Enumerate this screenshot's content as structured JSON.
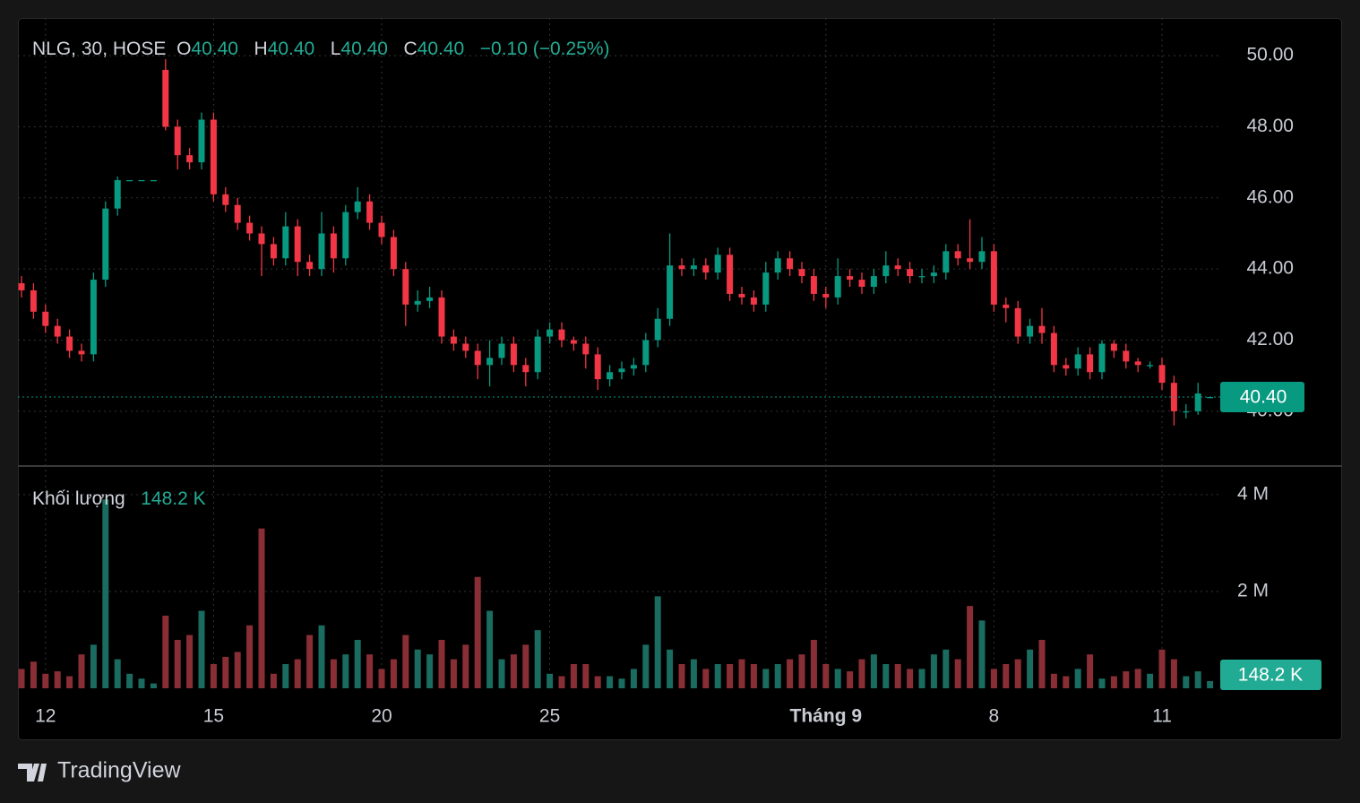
{
  "brand": "TradingView",
  "chart_data": {
    "type": "candlestick",
    "legend": {
      "symbol": "NLG, 30, HOSE",
      "items": [
        {
          "key": "O",
          "value": "40.40"
        },
        {
          "key": "H",
          "value": "40.40"
        },
        {
          "key": "L",
          "value": "40.40"
        },
        {
          "key": "C",
          "value": "40.40"
        }
      ],
      "change": "−0.10 (−0.25%)"
    },
    "volume_legend": {
      "name": "Khối lượng",
      "value": "148.2 K"
    },
    "categories": [
      null,
      null,
      "12",
      null,
      null,
      null,
      null,
      null,
      null,
      null,
      null,
      null,
      null,
      null,
      null,
      null,
      "15",
      null,
      null,
      null,
      null,
      null,
      null,
      null,
      null,
      null,
      null,
      null,
      null,
      null,
      "20",
      null,
      null,
      null,
      null,
      null,
      null,
      null,
      null,
      null,
      null,
      null,
      null,
      null,
      "25",
      null,
      null,
      null,
      null,
      null,
      null,
      null,
      null,
      null,
      null,
      null,
      null,
      null,
      null,
      null,
      null,
      null,
      null,
      null,
      null,
      null,
      null,
      "Tháng 9",
      null,
      null,
      null,
      null,
      null,
      null,
      null,
      null,
      null,
      null,
      null,
      null,
      null,
      "8",
      null,
      null,
      null,
      null,
      null,
      null,
      null,
      null,
      null,
      null,
      null,
      null,
      null,
      "11",
      null,
      null,
      null,
      null
    ],
    "open": [
      43.6,
      43.4,
      42.8,
      42.4,
      42.1,
      41.7,
      41.6,
      43.7,
      45.7,
      46.5,
      46.5,
      46.5,
      49.6,
      48.0,
      47.2,
      47.0,
      48.2,
      46.1,
      45.8,
      45.3,
      45.0,
      44.7,
      44.3,
      45.2,
      44.2,
      44.0,
      45.0,
      44.3,
      45.6,
      45.9,
      45.3,
      44.9,
      44.0,
      43.0,
      43.1,
      43.2,
      42.1,
      41.9,
      41.7,
      41.3,
      41.5,
      41.9,
      41.3,
      41.1,
      42.1,
      42.3,
      42.0,
      41.9,
      41.6,
      40.9,
      41.1,
      41.2,
      41.3,
      42.0,
      42.6,
      44.1,
      44.0,
      44.1,
      43.9,
      44.4,
      43.3,
      43.2,
      43.0,
      43.9,
      44.3,
      44.0,
      43.8,
      43.3,
      43.2,
      43.8,
      43.7,
      43.5,
      43.8,
      44.1,
      44.0,
      43.8,
      43.8,
      43.9,
      44.5,
      44.3,
      44.2,
      44.5,
      43.0,
      42.9,
      42.1,
      42.4,
      42.2,
      41.3,
      41.2,
      41.6,
      41.1,
      41.9,
      41.7,
      41.4,
      41.3,
      41.3,
      40.8,
      40.0,
      40.0,
      40.4
    ],
    "high": [
      43.8,
      43.6,
      43.0,
      42.6,
      42.3,
      41.9,
      43.9,
      45.9,
      46.6,
      46.5,
      46.5,
      46.5,
      49.9,
      48.2,
      47.4,
      48.4,
      48.4,
      46.3,
      46.0,
      45.5,
      45.2,
      44.9,
      45.6,
      45.4,
      44.4,
      45.6,
      45.2,
      45.8,
      46.3,
      46.1,
      45.5,
      45.1,
      44.2,
      43.4,
      43.5,
      43.4,
      42.3,
      42.1,
      41.9,
      42.0,
      42.1,
      42.1,
      41.5,
      42.3,
      42.5,
      42.5,
      42.1,
      42.1,
      41.8,
      41.3,
      41.4,
      41.5,
      42.2,
      42.9,
      45.0,
      44.3,
      44.3,
      44.3,
      44.6,
      44.6,
      43.5,
      43.4,
      44.2,
      44.5,
      44.5,
      44.2,
      44.0,
      43.5,
      44.3,
      44.0,
      43.9,
      44.0,
      44.5,
      44.3,
      44.2,
      44.0,
      44.1,
      44.7,
      44.7,
      45.4,
      44.9,
      44.7,
      43.2,
      43.1,
      42.6,
      42.9,
      42.4,
      41.5,
      41.8,
      41.8,
      42.0,
      42.0,
      41.9,
      41.5,
      41.4,
      41.5,
      41.0,
      40.2,
      40.8,
      40.4
    ],
    "low": [
      43.2,
      42.6,
      42.2,
      41.9,
      41.5,
      41.4,
      41.4,
      43.5,
      45.5,
      46.5,
      46.5,
      46.5,
      47.9,
      46.8,
      46.8,
      46.8,
      45.9,
      45.6,
      45.1,
      44.8,
      43.8,
      44.1,
      44.1,
      43.8,
      43.8,
      43.8,
      43.9,
      44.1,
      45.4,
      45.1,
      44.7,
      43.8,
      42.4,
      42.8,
      42.9,
      41.9,
      41.7,
      41.5,
      40.9,
      40.7,
      41.3,
      41.1,
      40.7,
      40.9,
      41.9,
      41.8,
      41.7,
      41.2,
      40.6,
      40.7,
      40.9,
      41.0,
      41.1,
      41.8,
      42.4,
      43.8,
      43.8,
      43.7,
      43.7,
      43.1,
      43.0,
      42.8,
      42.8,
      43.7,
      43.8,
      43.6,
      43.1,
      42.9,
      43.0,
      43.5,
      43.3,
      43.3,
      43.6,
      43.8,
      43.6,
      43.6,
      43.6,
      43.7,
      44.1,
      44.0,
      44.0,
      42.8,
      42.5,
      41.9,
      41.9,
      41.9,
      41.1,
      41.0,
      41.0,
      40.9,
      40.9,
      41.5,
      41.2,
      41.1,
      41.2,
      40.6,
      39.6,
      39.8,
      39.9,
      40.4
    ],
    "close": [
      43.4,
      42.8,
      42.4,
      42.1,
      41.7,
      41.6,
      43.7,
      45.7,
      46.5,
      46.5,
      46.5,
      46.5,
      48.0,
      47.2,
      47.0,
      48.2,
      46.1,
      45.8,
      45.3,
      45.0,
      44.7,
      44.3,
      45.2,
      44.2,
      44.0,
      45.0,
      44.3,
      45.6,
      45.9,
      45.3,
      44.9,
      44.0,
      43.0,
      43.1,
      43.2,
      42.1,
      41.9,
      41.7,
      41.3,
      41.5,
      41.9,
      41.3,
      41.1,
      42.1,
      42.3,
      42.0,
      41.9,
      41.6,
      40.9,
      41.1,
      41.2,
      41.3,
      42.0,
      42.6,
      44.1,
      44.0,
      44.1,
      43.9,
      44.4,
      43.3,
      43.2,
      43.0,
      43.9,
      44.3,
      44.0,
      43.8,
      43.3,
      43.2,
      43.8,
      43.7,
      43.5,
      43.8,
      44.1,
      44.0,
      43.8,
      43.8,
      43.9,
      44.5,
      44.3,
      44.2,
      44.5,
      43.0,
      42.9,
      42.1,
      42.4,
      42.2,
      41.3,
      41.2,
      41.6,
      41.1,
      41.9,
      41.7,
      41.4,
      41.3,
      41.3,
      40.8,
      40.0,
      40.0,
      40.5,
      40.4
    ],
    "volume": [
      400000,
      550000,
      300000,
      350000,
      250000,
      700000,
      900000,
      3900000,
      600000,
      300000,
      200000,
      100000,
      1500000,
      1000000,
      1100000,
      1600000,
      500000,
      650000,
      750000,
      1300000,
      3300000,
      300000,
      500000,
      600000,
      1100000,
      1300000,
      600000,
      700000,
      1000000,
      700000,
      400000,
      600000,
      1100000,
      800000,
      700000,
      1000000,
      600000,
      900000,
      2300000,
      1600000,
      600000,
      700000,
      900000,
      1200000,
      300000,
      250000,
      500000,
      500000,
      250000,
      250000,
      200000,
      400000,
      900000,
      1900000,
      800000,
      500000,
      600000,
      400000,
      500000,
      500000,
      600000,
      500000,
      400000,
      500000,
      600000,
      700000,
      1000000,
      500000,
      400000,
      350000,
      600000,
      700000,
      500000,
      500000,
      400000,
      400000,
      700000,
      800000,
      600000,
      1700000,
      1400000,
      400000,
      500000,
      600000,
      800000,
      1000000,
      300000,
      250000,
      400000,
      700000,
      200000,
      250000,
      350000,
      400000,
      300000,
      800000,
      600000,
      250000,
      350000,
      148200
    ],
    "ylim": [
      38.46,
      51.06
    ],
    "yticks": [
      {
        "value": 40,
        "label": "40.00"
      },
      {
        "value": 42,
        "label": "42.00"
      },
      {
        "value": 44,
        "label": "44.00"
      },
      {
        "value": 46,
        "label": "46.00"
      },
      {
        "value": 48,
        "label": "48.00"
      },
      {
        "value": 50,
        "label": "50.00"
      }
    ],
    "volume_ylim": [
      0,
      4590000
    ],
    "volume_ticks": [
      {
        "value": 2000000,
        "label": "2 M"
      },
      {
        "value": 4000000,
        "label": "4 M"
      }
    ],
    "up_color": "#089981",
    "down_color": "#f23645",
    "volume_up_color": "#1a6b60",
    "volume_down_color": "#8a2e35",
    "grid": true
  }
}
